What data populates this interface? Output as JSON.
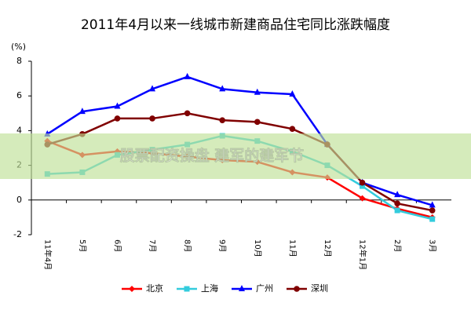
{
  "chart_data": {
    "type": "line",
    "title": "2011年4月以来一线城市新建商品住宅同比涨跌幅度",
    "y_label": "(%)",
    "categories": [
      "11年4月",
      "5月",
      "6月",
      "7月",
      "8月",
      "9月",
      "10月",
      "11月",
      "12月",
      "12年1月",
      "2月",
      "3月"
    ],
    "series": [
      {
        "name": "北京",
        "color": "#ff0000",
        "marker": "diamond",
        "values": [
          3.4,
          2.6,
          2.8,
          2.7,
          2.5,
          2.3,
          2.2,
          1.6,
          1.3,
          0.1,
          -0.5,
          -1.0
        ]
      },
      {
        "name": "上海",
        "color": "#33ccdd",
        "marker": "square",
        "values": [
          1.5,
          1.6,
          2.6,
          2.9,
          3.2,
          3.7,
          3.4,
          2.8,
          2.0,
          0.8,
          -0.6,
          -1.1
        ]
      },
      {
        "name": "广州",
        "color": "#0000ff",
        "marker": "triangle",
        "values": [
          3.8,
          5.1,
          5.4,
          6.4,
          7.1,
          6.4,
          6.2,
          6.1,
          3.2,
          1.0,
          0.3,
          -0.3
        ]
      },
      {
        "name": "深圳",
        "color": "#800000",
        "marker": "circle",
        "values": [
          3.2,
          3.8,
          4.7,
          4.7,
          5.0,
          4.6,
          4.5,
          4.1,
          3.2,
          1.0,
          -0.2,
          -0.6
        ]
      }
    ],
    "ylim": [
      -2,
      8
    ],
    "yticks": [
      -2,
      0,
      2,
      4,
      6,
      8
    ],
    "watermark": "股票配资操盘 建军的建军节"
  }
}
